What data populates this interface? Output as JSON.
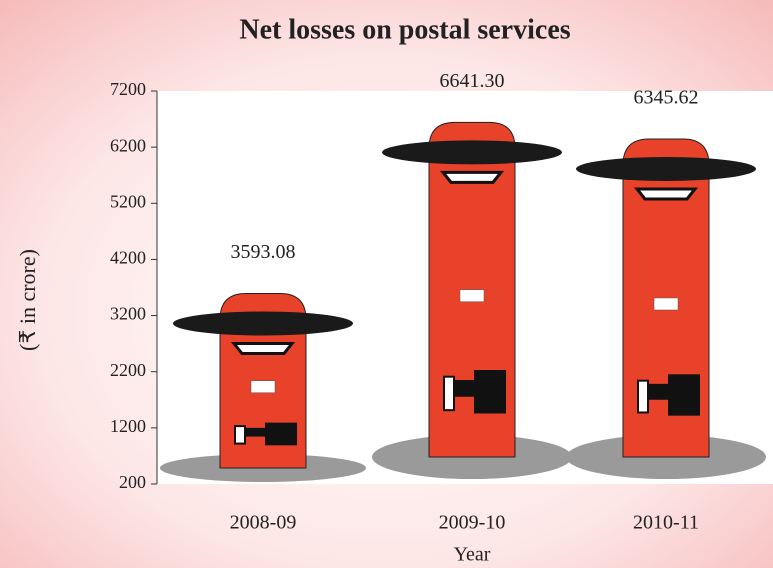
{
  "chart_data": {
    "type": "pictograph",
    "title": "Net losses on postal services",
    "ylabel": "(₹ in crore)",
    "xlabel": "Year",
    "categories": [
      "2008-09",
      "2009-10",
      "2010-11"
    ],
    "values": [
      3593.08,
      6641.3,
      6345.62
    ],
    "value_labels": [
      "3593.08",
      "6641.30",
      "6345.62"
    ],
    "color": "#e8432a",
    "ylim": [
      200,
      7200
    ],
    "yticks": [
      200,
      1200,
      2200,
      3200,
      4200,
      5200,
      6200,
      7200
    ]
  }
}
